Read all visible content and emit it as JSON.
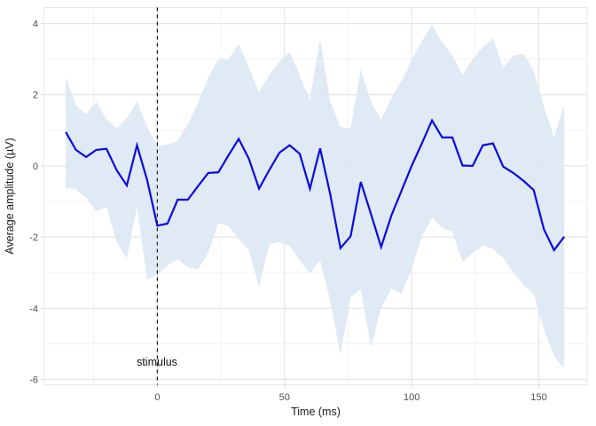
{
  "chart_data": {
    "type": "line",
    "title": "",
    "xlabel": "Time (ms)",
    "ylabel": "Average amplitude (µV)",
    "legend": "none",
    "grid": "on",
    "x": [
      -36,
      -32,
      -28,
      -24,
      -20,
      -16,
      -12,
      -8,
      -4,
      0,
      4,
      8,
      12,
      16,
      20,
      24,
      28,
      32,
      36,
      40,
      44,
      48,
      52,
      56,
      60,
      64,
      68,
      72,
      76,
      80,
      84,
      88,
      92,
      96,
      100,
      104,
      108,
      112,
      116,
      120,
      124,
      128,
      132,
      136,
      140,
      144,
      148,
      152,
      156,
      160
    ],
    "series": [
      {
        "name": "average amplitude (µV)",
        "values": [
          0.95,
          0.45,
          0.25,
          0.45,
          0.48,
          -0.12,
          -0.55,
          0.58,
          -0.4,
          -1.68,
          -1.62,
          -0.95,
          -0.95,
          -0.57,
          -0.2,
          -0.18,
          0.3,
          0.76,
          0.2,
          -0.64,
          -0.12,
          0.37,
          0.58,
          0.34,
          -0.64,
          0.49,
          -0.8,
          -2.31,
          -1.98,
          -0.45,
          -1.35,
          -2.28,
          -1.4,
          -0.7,
          0.0,
          0.63,
          1.28,
          0.8,
          0.8,
          0.01,
          0.0,
          0.58,
          0.63,
          -0.02,
          -0.2,
          -0.42,
          -0.68,
          -1.78,
          -2.37,
          -1.99
        ]
      }
    ],
    "ribbon": {
      "upper": [
        2.5,
        1.7,
        1.45,
        1.8,
        1.3,
        1.05,
        1.35,
        1.8,
        1.1,
        0.55,
        0.6,
        0.7,
        1.18,
        1.76,
        2.47,
        3.0,
        3.0,
        3.43,
        2.76,
        2.07,
        2.55,
        2.93,
        3.19,
        2.55,
        1.86,
        3.57,
        1.8,
        1.1,
        1.05,
        2.72,
        1.8,
        1.3,
        1.9,
        2.4,
        2.97,
        3.5,
        3.97,
        3.47,
        3.1,
        2.55,
        3.0,
        3.34,
        3.59,
        2.76,
        3.1,
        3.15,
        2.68,
        1.67,
        0.8,
        1.72
      ],
      "lower": [
        -0.62,
        -0.66,
        -0.9,
        -1.28,
        -1.15,
        -2.15,
        -2.6,
        -1.15,
        -3.2,
        -3.05,
        -2.8,
        -2.62,
        -2.85,
        -2.9,
        -2.45,
        -1.6,
        -1.7,
        -2.05,
        -2.37,
        -3.41,
        -2.2,
        -2.14,
        -2.24,
        -2.66,
        -3.03,
        -2.65,
        -3.8,
        -5.3,
        -3.7,
        -3.45,
        -5.1,
        -4.0,
        -3.45,
        -3.6,
        -2.89,
        -2.0,
        -1.45,
        -1.75,
        -1.85,
        -2.7,
        -2.45,
        -2.24,
        -2.33,
        -2.6,
        -3.0,
        -3.35,
        -3.6,
        -4.6,
        -5.35,
        -5.7
      ]
    },
    "xticks": [
      0,
      50,
      100,
      150
    ],
    "yticks": [
      4,
      2,
      0,
      -2,
      -4,
      -6
    ],
    "minor_xticks": [
      -25,
      25,
      75,
      125
    ],
    "minor_yticks": [
      3,
      1,
      -1,
      -3,
      -5
    ],
    "xlim": [
      -44.6,
      169.0
    ],
    "ylim": [
      -6.15,
      4.45
    ],
    "vline": {
      "x": 0,
      "style": "dashed",
      "label": "stimulus"
    },
    "colors": {
      "line": "#0a0ae0",
      "ribbon": "#dbe8f3",
      "grid_major": "#e3e3e3",
      "grid_minor": "#f0f0f0",
      "panel_border": "#e9e9e9",
      "tick_mark": "#d6d6d6",
      "tick_text": "#4d4d4d",
      "title_text": "#1a1a1a",
      "vline": "#1a1a1a",
      "background": "#ffffff"
    }
  }
}
